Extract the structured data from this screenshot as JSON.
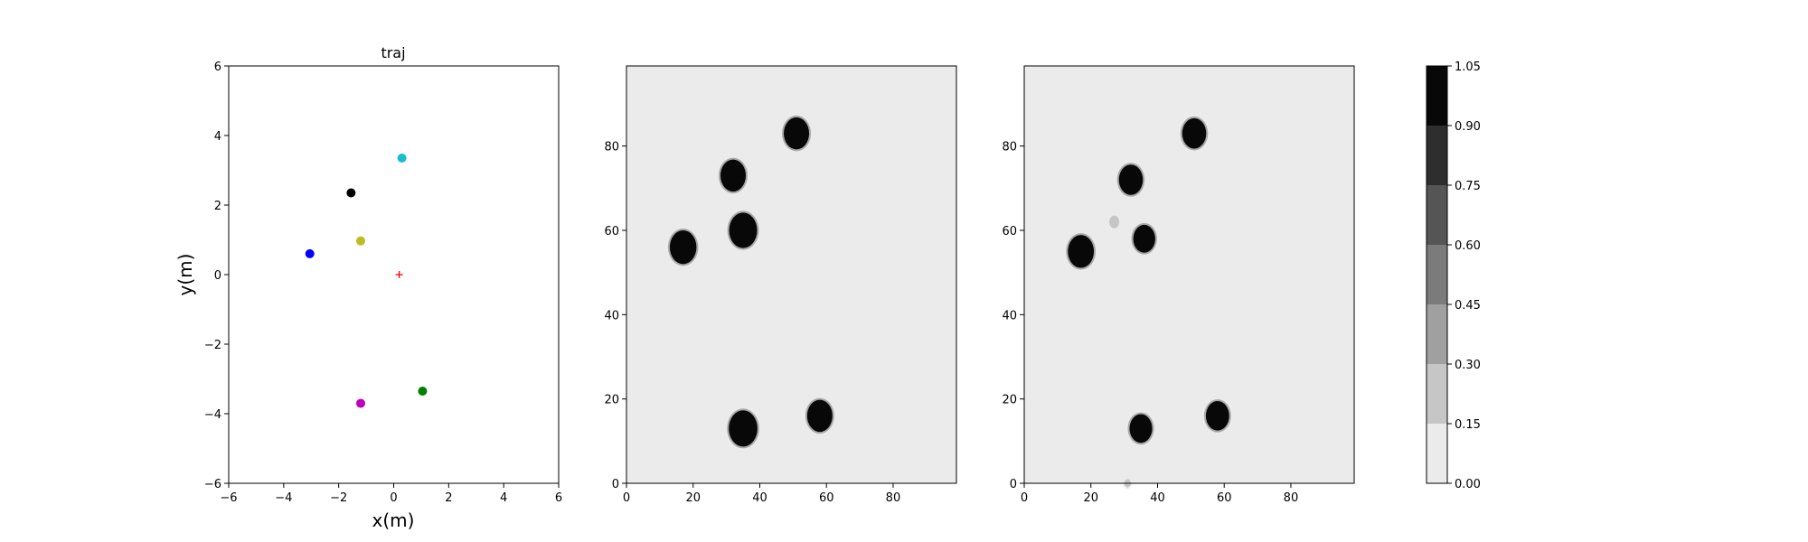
{
  "chart_data": [
    {
      "type": "scatter",
      "title": "traj",
      "xlabel": "x(m)",
      "ylabel": "y(m)",
      "xlim": [
        -6,
        6
      ],
      "ylim": [
        -6,
        6
      ],
      "xticks": [
        "−6",
        "−4",
        "−2",
        "0",
        "2",
        "4",
        "6"
      ],
      "yticks": [
        "−6",
        "−4",
        "−2",
        "0",
        "2",
        "4",
        "6"
      ],
      "grid": false,
      "points": [
        {
          "x": 0.3,
          "y": 3.35,
          "color": "#17becf",
          "marker": "dot"
        },
        {
          "x": -1.55,
          "y": 2.35,
          "color": "#000000",
          "marker": "dot"
        },
        {
          "x": -1.2,
          "y": 0.97,
          "color": "#bcbd22",
          "marker": "dot"
        },
        {
          "x": -3.05,
          "y": 0.6,
          "color": "#0000ff",
          "marker": "dot"
        },
        {
          "x": 0.2,
          "y": 0.0,
          "color": "#ff0000",
          "marker": "plus"
        },
        {
          "x": 1.05,
          "y": -3.35,
          "color": "#008000",
          "marker": "dot"
        },
        {
          "x": -1.2,
          "y": -3.7,
          "color": "#bf00bf",
          "marker": "dot"
        }
      ]
    },
    {
      "type": "heatmap",
      "title": "",
      "xlim": [
        0,
        99
      ],
      "ylim": [
        0,
        99
      ],
      "xticks": [
        "0",
        "20",
        "40",
        "60",
        "80"
      ],
      "yticks": [
        "0",
        "20",
        "40",
        "60",
        "80"
      ],
      "background_value": 0.0,
      "blobs": [
        {
          "x": 51,
          "y": 83,
          "r": 3.8,
          "value": 1.0
        },
        {
          "x": 32,
          "y": 73,
          "r": 3.8,
          "value": 1.0
        },
        {
          "x": 17,
          "y": 56,
          "r": 4.0,
          "value": 1.0
        },
        {
          "x": 35,
          "y": 60,
          "r": 4.2,
          "value": 1.0
        },
        {
          "x": 35,
          "y": 13,
          "r": 4.3,
          "value": 1.0
        },
        {
          "x": 58,
          "y": 16,
          "r": 3.8,
          "value": 1.0
        }
      ]
    },
    {
      "type": "heatmap",
      "title": "",
      "xlim": [
        0,
        99
      ],
      "ylim": [
        0,
        99
      ],
      "xticks": [
        "0",
        "20",
        "40",
        "60",
        "80"
      ],
      "yticks": [
        "0",
        "20",
        "40",
        "60",
        "80"
      ],
      "background_value": 0.0,
      "blobs": [
        {
          "x": 51,
          "y": 83,
          "r": 3.6,
          "value": 1.0
        },
        {
          "x": 32,
          "y": 72,
          "r": 3.6,
          "value": 1.0
        },
        {
          "x": 17,
          "y": 55,
          "r": 3.9,
          "value": 1.0
        },
        {
          "x": 36,
          "y": 58,
          "r": 3.3,
          "value": 1.0
        },
        {
          "x": 35,
          "y": 13,
          "r": 3.4,
          "value": 1.0
        },
        {
          "x": 58,
          "y": 16,
          "r": 3.5,
          "value": 1.0
        },
        {
          "x": 27,
          "y": 62,
          "r": 1.5,
          "value": 0.2
        },
        {
          "x": 31,
          "y": 0,
          "r": 1.0,
          "value": 0.2
        }
      ]
    }
  ],
  "colorbar": {
    "ticks": [
      "0.00",
      "0.15",
      "0.30",
      "0.45",
      "0.60",
      "0.75",
      "0.90",
      "1.05"
    ],
    "levels": [
      0.0,
      0.15,
      0.3,
      0.45,
      0.6,
      0.75,
      0.9,
      1.05
    ],
    "colors": [
      "#ebebeb",
      "#c6c6c6",
      "#a0a0a0",
      "#7b7b7b",
      "#555555",
      "#2e2e2e",
      "#080808"
    ]
  }
}
